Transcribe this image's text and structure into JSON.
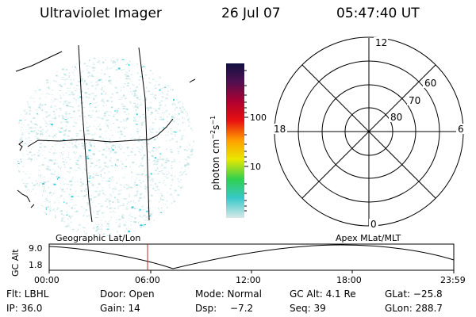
{
  "header": {
    "title": "Ultraviolet Imager",
    "date": "26 Jul 07",
    "time": "05:47:40 UT"
  },
  "colorbar": {
    "unit_label": "photon cm",
    "unit_exp1": "−2",
    "unit_mid": "s",
    "unit_exp2": "−1",
    "tick_high": "100",
    "tick_low": "10"
  },
  "polar_plot": {
    "label_top": "12",
    "label_bottom": "0",
    "label_left": "18",
    "label_right": "6",
    "ring_labels": [
      "60",
      "70",
      "80"
    ]
  },
  "timeline": {
    "left_caption": "Geographic Lat/Lon",
    "right_caption": "Apex MLat/MLT",
    "y_axis_label": "GC Alt",
    "y_max": "9.0",
    "y_min": "1.8",
    "x_ticks": [
      "00:00",
      "06:00",
      "12:00",
      "18:00",
      "23:59"
    ],
    "current_marker_time": "05:47:40"
  },
  "status": {
    "flt": "Flt: LBHL",
    "door": "Door: Open",
    "mode": "Mode: Normal",
    "gc_alt": "GC Alt: 4.1 Re",
    "glat": "GLat: −25.8",
    "ip": "IP: 36.0",
    "gain": "Gain: 14",
    "dsp_label": "Dsp:",
    "dsp_value": "−7.2",
    "seq": "Seq: 39",
    "glon": "GLon: 288.7"
  },
  "colors": {
    "speckle": "#aad8d8",
    "speckle_bright": "#22c8d8",
    "marker": "#cc2222",
    "colorbar": [
      "#d8e8e8",
      "#38c8c8",
      "#30d050",
      "#e8e800",
      "#ffa000",
      "#e81010",
      "#b00030",
      "#501050",
      "#101040"
    ]
  }
}
